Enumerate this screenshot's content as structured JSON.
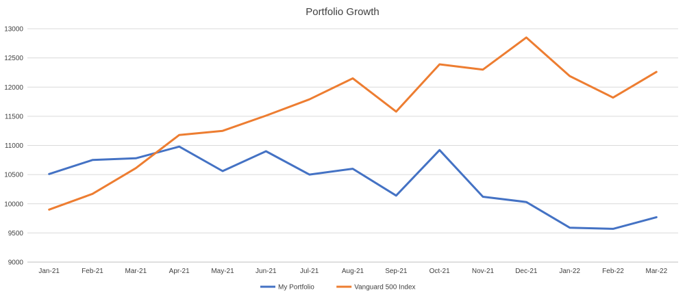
{
  "chart_data": {
    "type": "line",
    "title": "Portfolio Growth",
    "xlabel": "",
    "ylabel": "",
    "categories": [
      "Jan-21",
      "Feb-21",
      "Mar-21",
      "Apr-21",
      "May-21",
      "Jun-21",
      "Jul-21",
      "Aug-21",
      "Sep-21",
      "Oct-21",
      "Nov-21",
      "Dec-21",
      "Jan-22",
      "Feb-22",
      "Mar-22"
    ],
    "ylim": [
      9000,
      13000
    ],
    "yticks": [
      9000,
      9500,
      10000,
      10500,
      11000,
      11500,
      12000,
      12500,
      13000
    ],
    "grid": "horizontal",
    "legend_position": "bottom",
    "series": [
      {
        "name": "My Portfolio",
        "color": "#4472c4",
        "values": [
          10510,
          10750,
          10780,
          10980,
          10560,
          10900,
          10500,
          10600,
          10140,
          10920,
          10120,
          10030,
          9590,
          9570,
          9770
        ]
      },
      {
        "name": "Vanguard 500 Index",
        "color": "#ed7d31",
        "values": [
          9900,
          10170,
          10610,
          11180,
          11250,
          11510,
          11790,
          12150,
          11580,
          12390,
          12300,
          12850,
          12190,
          11820,
          12260
        ]
      }
    ]
  }
}
